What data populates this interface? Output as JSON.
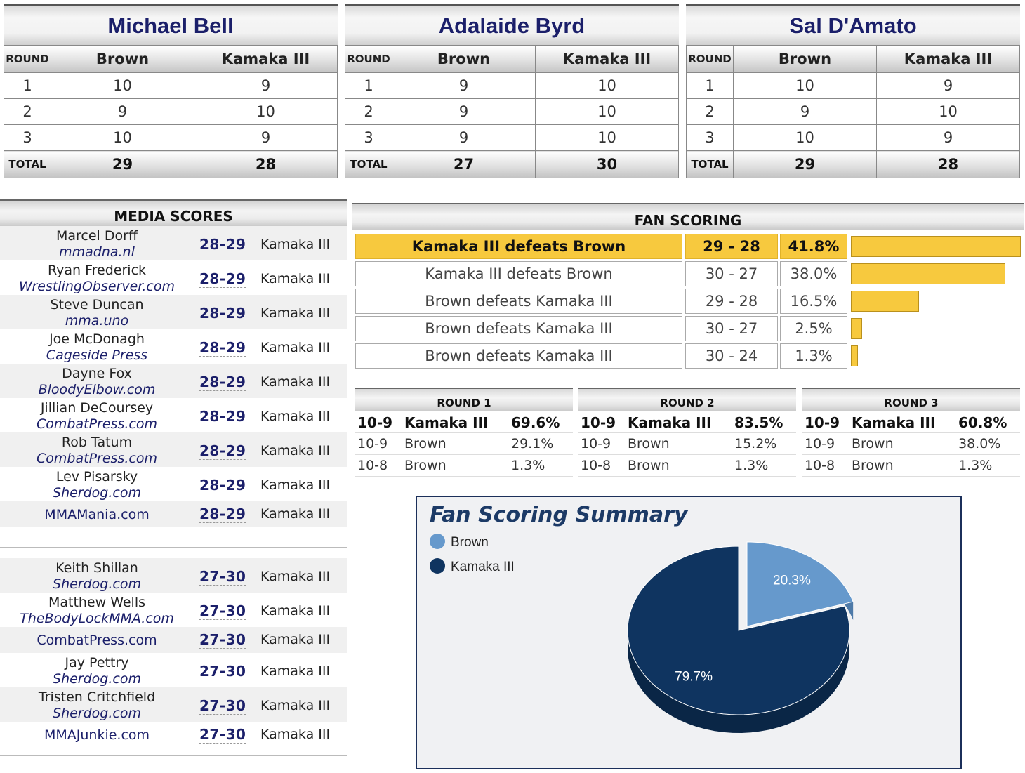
{
  "judges": [
    {
      "name": "Michael Bell",
      "round_label": "ROUND",
      "fighter_a": "Brown",
      "fighter_b": "Kamaka III",
      "rounds": [
        {
          "r": "1",
          "a": "10",
          "b": "9"
        },
        {
          "r": "2",
          "a": "9",
          "b": "10"
        },
        {
          "r": "3",
          "a": "10",
          "b": "9"
        }
      ],
      "total_label": "TOTAL",
      "total_a": "29",
      "total_b": "28"
    },
    {
      "name": "Adalaide Byrd",
      "round_label": "ROUND",
      "fighter_a": "Brown",
      "fighter_b": "Kamaka III",
      "rounds": [
        {
          "r": "1",
          "a": "9",
          "b": "10"
        },
        {
          "r": "2",
          "a": "9",
          "b": "10"
        },
        {
          "r": "3",
          "a": "9",
          "b": "10"
        }
      ],
      "total_label": "TOTAL",
      "total_a": "27",
      "total_b": "30"
    },
    {
      "name": "Sal D'Amato",
      "round_label": "ROUND",
      "fighter_a": "Brown",
      "fighter_b": "Kamaka III",
      "rounds": [
        {
          "r": "1",
          "a": "10",
          "b": "9"
        },
        {
          "r": "2",
          "a": "9",
          "b": "10"
        },
        {
          "r": "3",
          "a": "10",
          "b": "9"
        }
      ],
      "total_label": "TOTAL",
      "total_a": "29",
      "total_b": "28"
    }
  ],
  "media": {
    "title": "MEDIA SCORES",
    "group1": [
      {
        "name": "Marcel Dorff",
        "site": "mmadna.nl",
        "score": "28-29",
        "winner": "Kamaka III"
      },
      {
        "name": "Ryan Frederick",
        "site": "WrestlingObserver.com",
        "score": "28-29",
        "winner": "Kamaka III"
      },
      {
        "name": "Steve Duncan",
        "site": "mma.uno",
        "score": "28-29",
        "winner": "Kamaka III"
      },
      {
        "name": "Joe McDonagh",
        "site": "Cageside Press",
        "score": "28-29",
        "winner": "Kamaka III"
      },
      {
        "name": "Dayne Fox",
        "site": "BloodyElbow.com",
        "score": "28-29",
        "winner": "Kamaka III"
      },
      {
        "name": "Jillian DeCoursey",
        "site": "CombatPress.com",
        "score": "28-29",
        "winner": "Kamaka III"
      },
      {
        "name": "Rob Tatum",
        "site": "CombatPress.com",
        "score": "28-29",
        "winner": "Kamaka III"
      },
      {
        "name": "Lev Pisarsky",
        "site": "Sherdog.com",
        "score": "28-29",
        "winner": "Kamaka III"
      },
      {
        "name": "",
        "site": "MMAMania.com",
        "score": "28-29",
        "winner": "Kamaka III"
      }
    ],
    "group2": [
      {
        "name": "Keith Shillan",
        "site": "Sherdog.com",
        "score": "27-30",
        "winner": "Kamaka III"
      },
      {
        "name": "Matthew Wells",
        "site": "TheBodyLockMMA.com",
        "score": "27-30",
        "winner": "Kamaka III"
      },
      {
        "name": "",
        "site": "CombatPress.com",
        "score": "27-30",
        "winner": "Kamaka III"
      },
      {
        "name": "Jay Pettry",
        "site": "Sherdog.com",
        "score": "27-30",
        "winner": "Kamaka III"
      },
      {
        "name": "Tristen Critchfield",
        "site": "Sherdog.com",
        "score": "27-30",
        "winner": "Kamaka III"
      },
      {
        "name": "",
        "site": "MMAJunkie.com",
        "score": "27-30",
        "winner": "Kamaka III"
      }
    ]
  },
  "fan_scoring": {
    "title": "FAN SCORING",
    "rows": [
      {
        "result": "Kamaka III defeats Brown",
        "score": "29 - 28",
        "pct": "41.8%",
        "value": 41.8
      },
      {
        "result": "Kamaka III defeats Brown",
        "score": "30 - 27",
        "pct": "38.0%",
        "value": 38.0
      },
      {
        "result": "Brown defeats Kamaka III",
        "score": "29 - 28",
        "pct": "16.5%",
        "value": 16.5
      },
      {
        "result": "Brown defeats Kamaka III",
        "score": "30 - 27",
        "pct": "2.5%",
        "value": 2.5
      },
      {
        "result": "Brown defeats Kamaka III",
        "score": "30 - 24",
        "pct": "1.3%",
        "value": 1.3
      }
    ],
    "bar_color": "#f7c93e"
  },
  "rounds": [
    {
      "title": "ROUND 1",
      "rows": [
        {
          "score": "10-9",
          "fighter": "Kamaka III",
          "pct": "69.6%"
        },
        {
          "score": "10-9",
          "fighter": "Brown",
          "pct": "29.1%"
        },
        {
          "score": "10-8",
          "fighter": "Brown",
          "pct": "1.3%"
        }
      ]
    },
    {
      "title": "ROUND 2",
      "rows": [
        {
          "score": "10-9",
          "fighter": "Kamaka III",
          "pct": "83.5%"
        },
        {
          "score": "10-9",
          "fighter": "Brown",
          "pct": "15.2%"
        },
        {
          "score": "10-8",
          "fighter": "Brown",
          "pct": "1.3%"
        }
      ]
    },
    {
      "title": "ROUND 3",
      "rows": [
        {
          "score": "10-9",
          "fighter": "Kamaka III",
          "pct": "60.8%"
        },
        {
          "score": "10-9",
          "fighter": "Brown",
          "pct": "38.0%"
        },
        {
          "score": "10-8",
          "fighter": "Brown",
          "pct": "1.3%"
        }
      ]
    }
  ],
  "summary": {
    "title": "Fan Scoring Summary",
    "chart_data": {
      "type": "pie",
      "title": "Fan Scoring Summary",
      "categories": [
        "Brown",
        "Kamaka III"
      ],
      "values": [
        20.3,
        79.7
      ],
      "labels": [
        "20.3%",
        "79.7%"
      ],
      "colors": [
        "#6699cc",
        "#0f3460"
      ],
      "legend": "top-left"
    }
  }
}
